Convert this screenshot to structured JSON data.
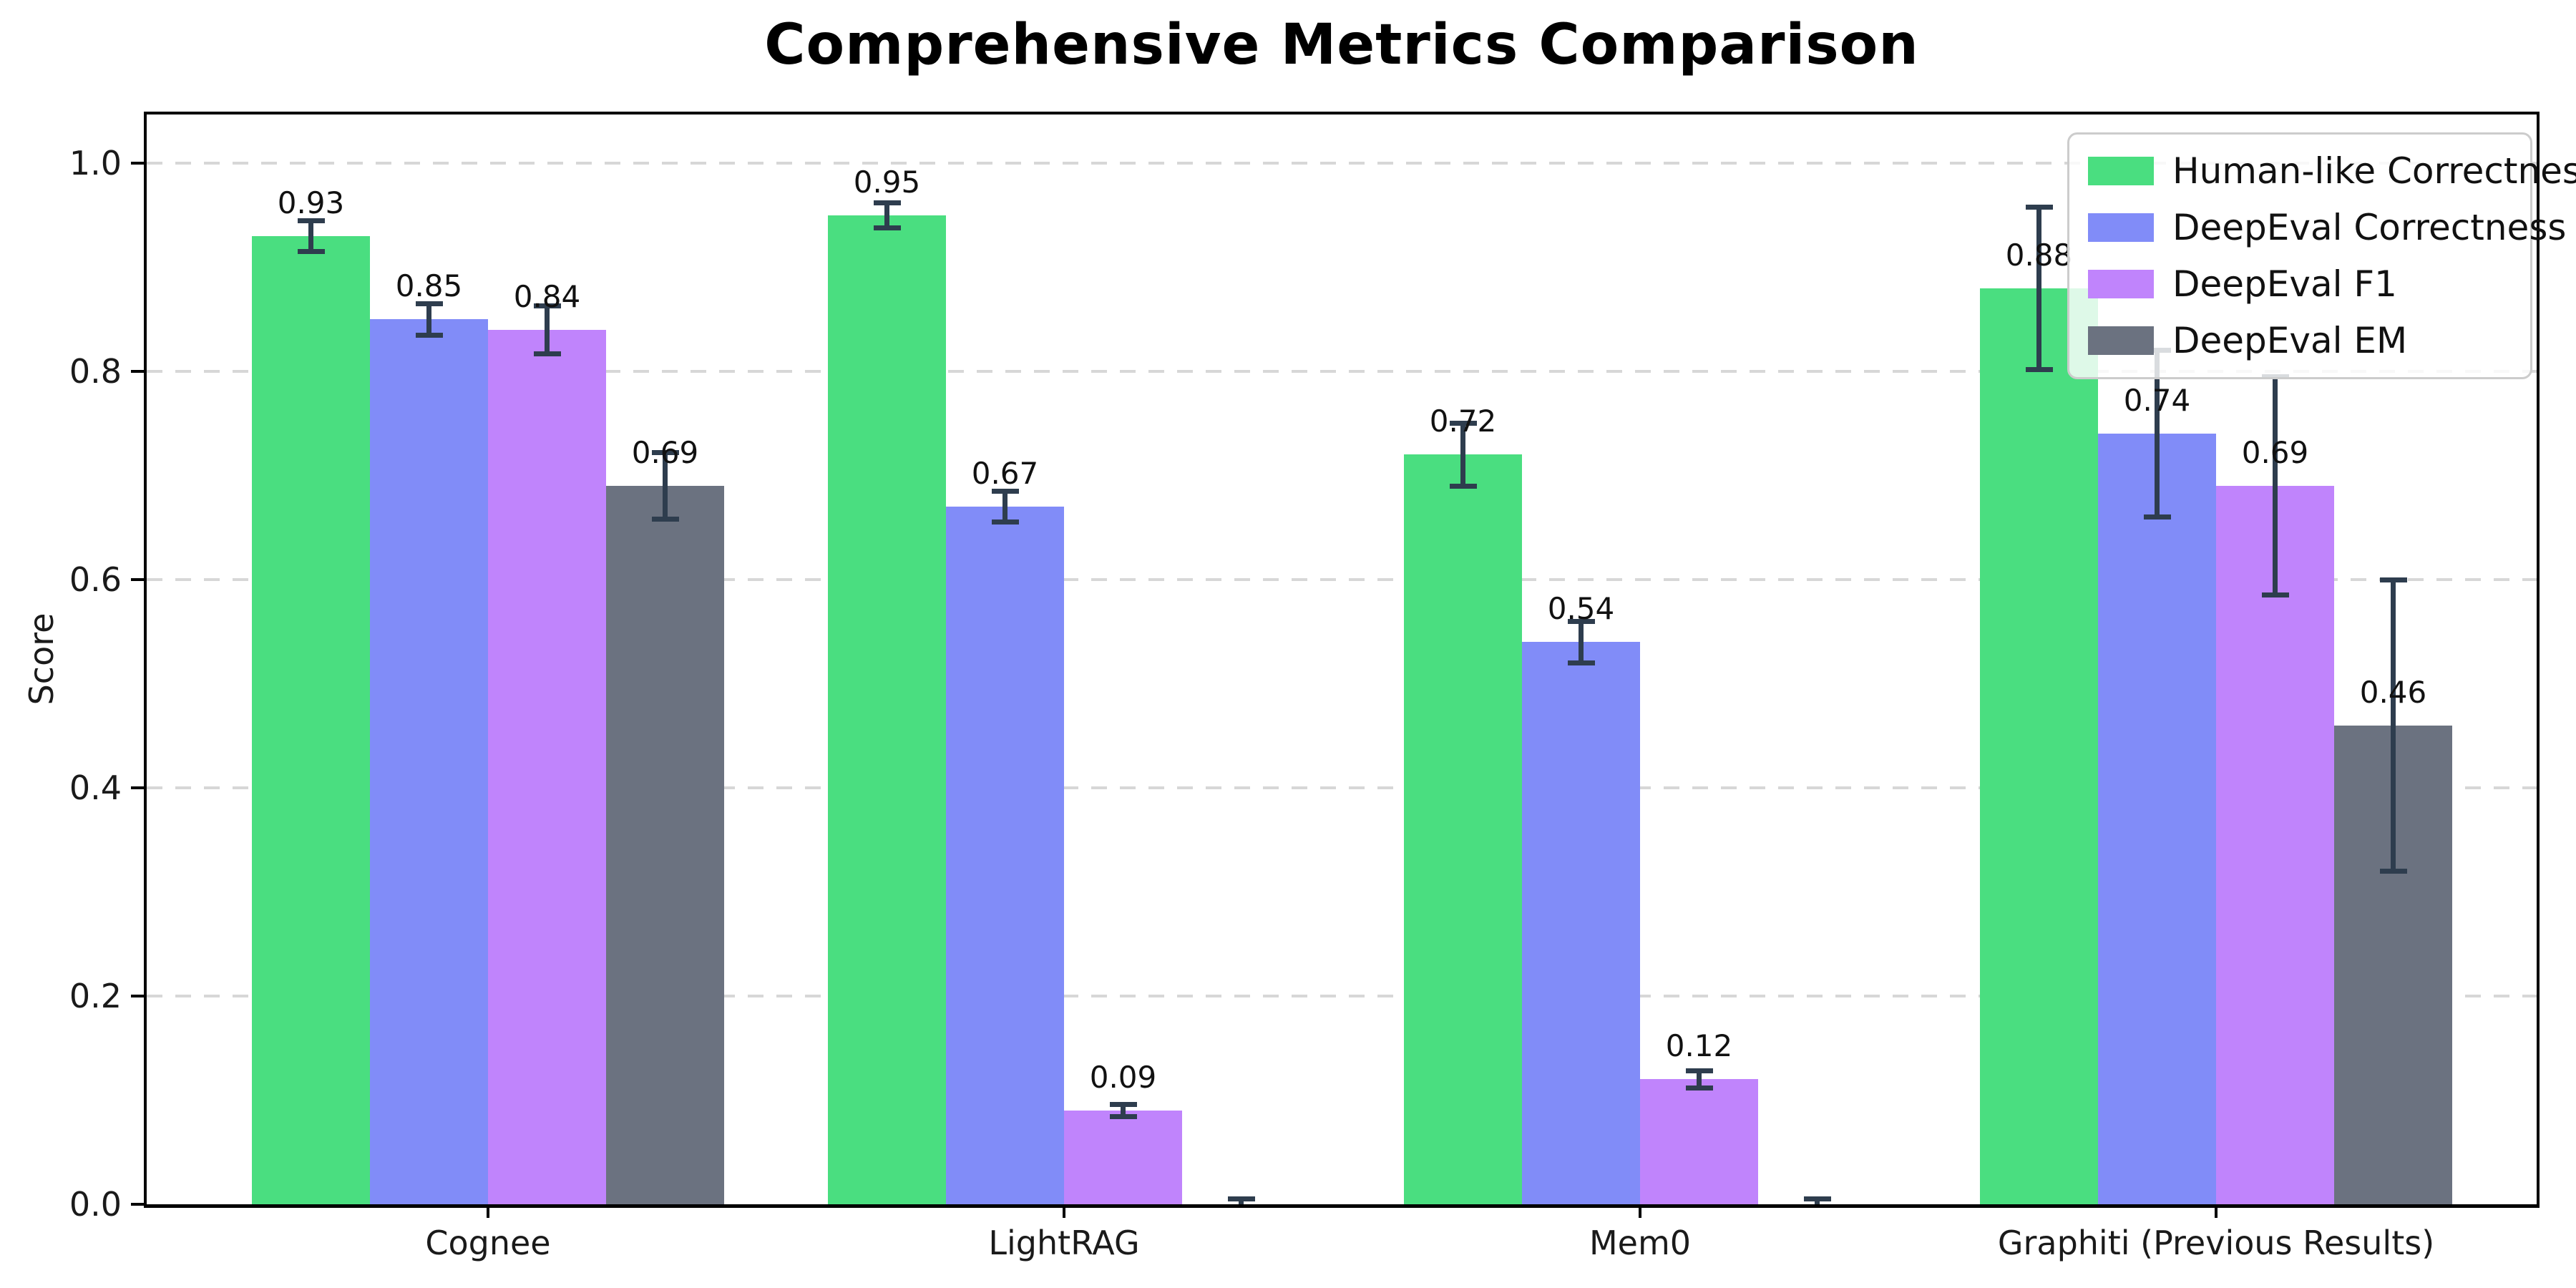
{
  "title": "Comprehensive Metrics Comparison",
  "axes": {
    "ylabel": "Score",
    "yticks": [
      "0.0",
      "0.2",
      "0.4",
      "0.6",
      "0.8",
      "1.0"
    ],
    "ytick_values": [
      0.0,
      0.2,
      0.4,
      0.6,
      0.8,
      1.0
    ],
    "grid": "dashed-horizontal",
    "grid_color": "#d7d7d7",
    "spine_color": "#000000"
  },
  "legend": {
    "position": "upper right",
    "items": [
      {
        "label": "Human-like Correctness",
        "color": "#4ade80"
      },
      {
        "label": "DeepEval Correctness",
        "color": "#818cf8"
      },
      {
        "label": "DeepEval F1",
        "color": "#c084fc"
      },
      {
        "label": "DeepEval EM",
        "color": "#6b7280"
      }
    ]
  },
  "error_bar_color": "#2e3d4e",
  "chart_data": {
    "type": "bar",
    "title": "Comprehensive Metrics Comparison",
    "xlabel": "",
    "ylabel": "Score",
    "ylim": [
      0,
      1.05
    ],
    "grid": true,
    "legend_position": "upper right",
    "categories": [
      "Cognee",
      "LightRAG",
      "Mem0",
      "Graphiti (Previous Results)"
    ],
    "series": [
      {
        "name": "Human-like Correctness",
        "color": "#4ade80",
        "values": [
          0.93,
          0.95,
          0.72,
          0.88
        ],
        "errors": [
          0.015,
          0.012,
          0.03,
          0.078
        ],
        "labels": [
          "0.93",
          "0.95",
          "0.72",
          "0.88"
        ]
      },
      {
        "name": "DeepEval Correctness",
        "color": "#818cf8",
        "values": [
          0.85,
          0.67,
          0.54,
          0.74
        ],
        "errors": [
          0.015,
          0.015,
          0.02,
          0.08
        ],
        "labels": [
          "0.85",
          "0.67",
          "0.54",
          "0.74"
        ]
      },
      {
        "name": "DeepEval F1",
        "color": "#c084fc",
        "values": [
          0.84,
          0.09,
          0.12,
          0.69
        ],
        "errors": [
          0.023,
          0.006,
          0.008,
          0.105
        ],
        "labels": [
          "0.84",
          "0.09",
          "0.12",
          "0.69"
        ]
      },
      {
        "name": "DeepEval EM",
        "color": "#6b7280",
        "values": [
          0.69,
          0.0,
          0.0,
          0.46
        ],
        "errors": [
          0.032,
          0.005,
          0.005,
          0.14
        ],
        "labels": [
          "0.69",
          null,
          null,
          "0.46"
        ]
      }
    ]
  }
}
